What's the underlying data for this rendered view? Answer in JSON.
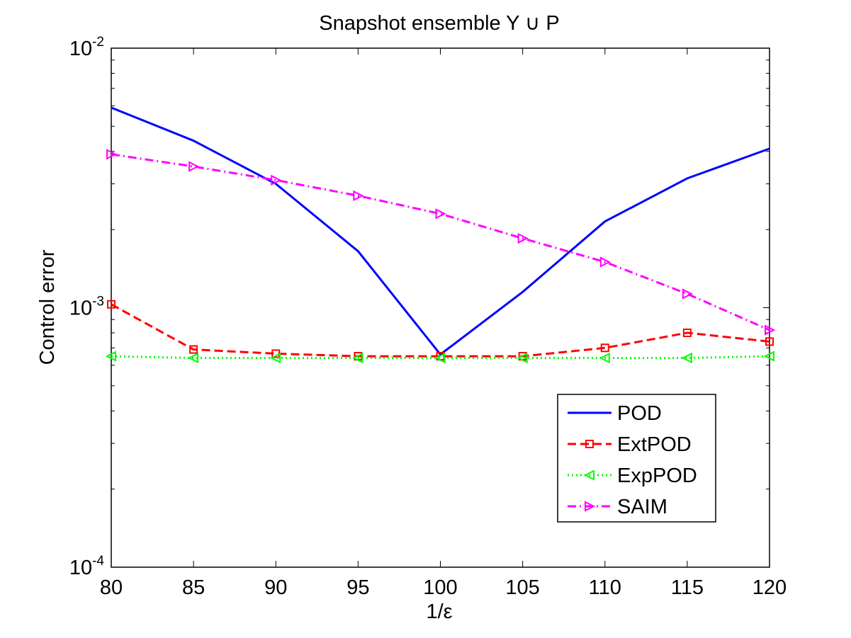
{
  "chart_data": {
    "type": "line",
    "title": "Snapshot ensemble Y ∪ P",
    "xlabel": "1/ε",
    "ylabel": "Control error",
    "xlim": [
      80,
      120
    ],
    "ylim": [
      0.0001,
      0.01
    ],
    "yscale": "log",
    "grid": false,
    "legend_position": "lower-right",
    "x": [
      80,
      85,
      90,
      95,
      100,
      105,
      110,
      115,
      120
    ],
    "xticks": [
      "80",
      "85",
      "90",
      "95",
      "100",
      "105",
      "110",
      "115",
      "120"
    ],
    "yticks": [
      {
        "base": "10",
        "exp": "-4",
        "value": 0.0001
      },
      {
        "base": "10",
        "exp": "-3",
        "value": 0.001
      },
      {
        "base": "10",
        "exp": "-2",
        "value": 0.01
      }
    ],
    "series": [
      {
        "name": "POD",
        "color": "#0000ff",
        "dash": "solid",
        "marker": "none",
        "values": [
          0.0059,
          0.0044,
          0.003,
          0.00165,
          0.00066,
          0.00115,
          0.00215,
          0.00315,
          0.0041
        ]
      },
      {
        "name": "ExtPOD",
        "color": "#ff0000",
        "dash": "dashed",
        "marker": "square",
        "values": [
          0.00103,
          0.00069,
          0.000665,
          0.00065,
          0.00065,
          0.00065,
          0.0007,
          0.0008,
          0.00074
        ]
      },
      {
        "name": "ExpPOD",
        "color": "#00ff00",
        "dash": "dotted",
        "marker": "triangle-left",
        "values": [
          0.00065,
          0.00064,
          0.00064,
          0.00064,
          0.00064,
          0.00064,
          0.00064,
          0.00064,
          0.00065
        ]
      },
      {
        "name": "SAIM",
        "color": "#ff00ff",
        "dash": "dashdot",
        "marker": "triangle-right",
        "values": [
          0.0039,
          0.0035,
          0.0031,
          0.0027,
          0.0023,
          0.00185,
          0.0015,
          0.00113,
          0.00082
        ]
      }
    ]
  }
}
